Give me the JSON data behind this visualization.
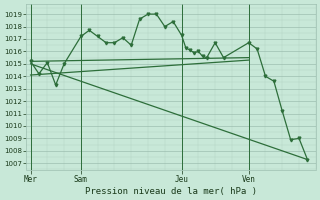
{
  "bg_color": "#c8e8d8",
  "grid_major_color": "#9dbfb0",
  "line_color": "#2d6e3a",
  "xlabel": "Pression niveau de la mer( hPa )",
  "ylim": [
    1006.5,
    1019.8
  ],
  "yticks": [
    1007,
    1008,
    1009,
    1010,
    1011,
    1012,
    1013,
    1014,
    1015,
    1016,
    1017,
    1018,
    1019
  ],
  "day_labels": [
    "Mer",
    "Sam",
    "Jeu",
    "Ven"
  ],
  "day_positions": [
    0,
    6,
    18,
    26
  ],
  "xlim": [
    -0.5,
    34
  ],
  "jagged_x": [
    0,
    1,
    2,
    3,
    4,
    6,
    7,
    8,
    9,
    10,
    11,
    12,
    13,
    14,
    15,
    16,
    17,
    18,
    18.5,
    19,
    19.5,
    20,
    20.5,
    21,
    22,
    23,
    26,
    27,
    28,
    29,
    30,
    31,
    32,
    33
  ],
  "jagged_y": [
    1015.2,
    1014.2,
    1015.1,
    1013.3,
    1015.0,
    1017.2,
    1017.7,
    1017.2,
    1016.7,
    1016.7,
    1017.1,
    1016.5,
    1018.6,
    1019.0,
    1019.0,
    1018.0,
    1018.4,
    1017.3,
    1016.3,
    1016.1,
    1015.9,
    1016.0,
    1015.6,
    1015.5,
    1016.7,
    1015.5,
    1016.7,
    1016.2,
    1014.0,
    1013.6,
    1011.2,
    1008.9,
    1009.0,
    1007.3
  ],
  "trend1_x": [
    0,
    26
  ],
  "trend1_y": [
    1015.2,
    1015.5
  ],
  "trend2_x": [
    0,
    26
  ],
  "trend2_y": [
    1014.1,
    1015.3
  ],
  "trend3_x": [
    0,
    33
  ],
  "trend3_y": [
    1015.0,
    1007.3
  ],
  "vlines": [
    0,
    6,
    18,
    26
  ]
}
